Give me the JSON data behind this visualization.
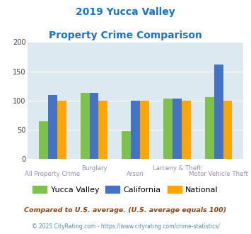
{
  "title_line1": "2019 Yucca Valley",
  "title_line2": "Property Crime Comparison",
  "title_color": "#1874cd",
  "categories": [
    "All Property Crime",
    "Burglary",
    "Arson",
    "Larceny & Theft",
    "Motor Vehicle Theft"
  ],
  "yucca_valley": [
    65,
    113,
    48,
    103,
    106
  ],
  "california": [
    110,
    113,
    100,
    103,
    162
  ],
  "national": [
    100,
    100,
    100,
    100,
    100
  ],
  "color_yucca": "#7dc24b",
  "color_california": "#4472c4",
  "color_national": "#ffa500",
  "ylim": [
    0,
    200
  ],
  "yticks": [
    0,
    50,
    100,
    150,
    200
  ],
  "bg_color": "#dde9f0",
  "legend_labels": [
    "Yucca Valley",
    "California",
    "National"
  ],
  "footnote1": "Compared to U.S. average. (U.S. average equals 100)",
  "footnote2": "© 2025 CityRating.com - https://www.cityrating.com/crime-statistics/",
  "footnote1_color": "#8b4513",
  "footnote2_color": "#5588aa",
  "xlabel_color": "#9988aa",
  "bar_width": 0.22
}
